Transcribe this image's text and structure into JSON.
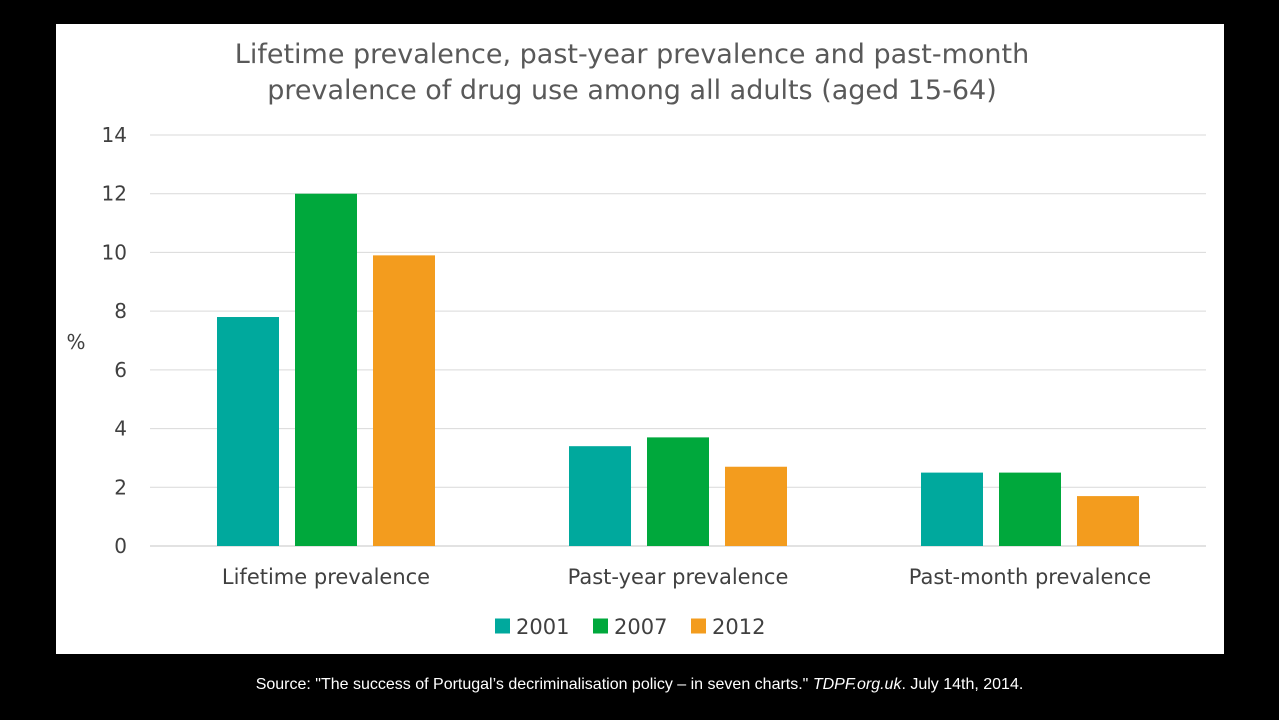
{
  "chart_data": {
    "type": "bar",
    "title_lines": [
      "Lifetime prevalence, past-year prevalence and past-month",
      "prevalence of drug use among all adults (aged 15-64)"
    ],
    "ylabel": "%",
    "xlabel": "",
    "ylim": [
      0,
      14
    ],
    "yticks": [
      0,
      2,
      4,
      6,
      8,
      10,
      12,
      14
    ],
    "grid": true,
    "legend_position": "bottom",
    "categories": [
      "Lifetime prevalence",
      "Past-year prevalence",
      "Past-month prevalence"
    ],
    "series": [
      {
        "name": "2001",
        "color": "#00a99d",
        "values": [
          7.8,
          3.4,
          2.5
        ]
      },
      {
        "name": "2007",
        "color": "#00a83c",
        "values": [
          12.0,
          3.7,
          2.5
        ]
      },
      {
        "name": "2012",
        "color": "#f39c1e",
        "values": [
          9.9,
          2.7,
          1.7
        ]
      }
    ]
  },
  "source": {
    "prefix": "Source: \"The success of Portugal’s decriminalisation policy – in seven charts.\" ",
    "publication": "TDPF.org.uk",
    "suffix": ". July 14th, 2014."
  }
}
